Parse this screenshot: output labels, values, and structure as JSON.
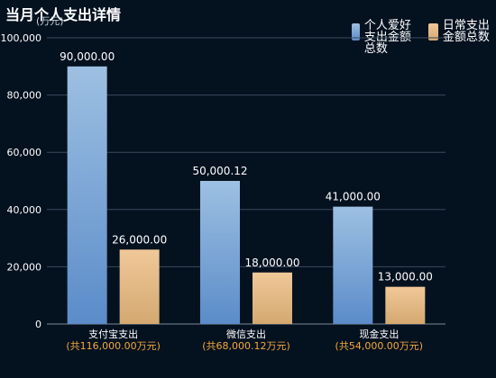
{
  "chart_data": {
    "type": "bar",
    "title": "当月个人支出详情",
    "unit_label": "(万元)",
    "categories": [
      "支付宝支出",
      "微信支出",
      "现金支出"
    ],
    "category_subtitles": [
      "(共116,000.00万元)",
      "(共68,000.12万元)",
      "(共54,000.00万元)"
    ],
    "series": [
      {
        "name": "个人爱好支出金额总数",
        "values": [
          90000.0,
          50000.12,
          41000.0
        ],
        "value_labels": [
          "90,000.00",
          "50,000.12",
          "41,000.00"
        ]
      },
      {
        "name": "日常支出金额总数",
        "values": [
          26000.0,
          18000.0,
          13000.0
        ],
        "value_labels": [
          "26,000.00",
          "18,000.00",
          "13,000.00"
        ]
      }
    ],
    "ylim": [
      0,
      100000
    ],
    "yticks": [
      0,
      20000,
      40000,
      60000,
      80000,
      100000
    ],
    "ytick_labels": [
      "0",
      "20,000",
      "40,000",
      "60,000",
      "80,000",
      "100,000"
    ],
    "grid": true,
    "legend_position": "top-right"
  },
  "colors": {
    "background": "#04111f",
    "series1_top": "#9dc0e2",
    "series1_bottom": "#5b8cc9",
    "series2_top": "#f0c898",
    "series2_bottom": "#d4a870",
    "subtitle": "#f2a93b",
    "gridline": "#3b4a5c",
    "axis_text": "#ffffff"
  }
}
